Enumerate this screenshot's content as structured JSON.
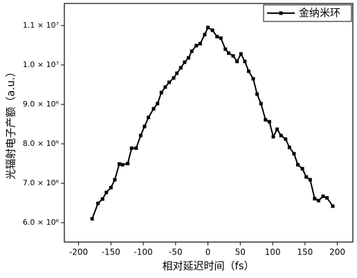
{
  "chart_data": {
    "type": "line",
    "xlabel": "相对延迟时间（fs）",
    "ylabel": "光辐射电子产额（a.u.）",
    "xlim": [
      -222,
      224
    ],
    "ylim": [
      5510000,
      11560000
    ],
    "xticks": [
      -200,
      -150,
      -100,
      -50,
      0,
      50,
      100,
      150,
      200
    ],
    "yticks": [
      {
        "value": 6000000,
        "label": "6.0 × 10⁶"
      },
      {
        "value": 7000000,
        "label": "7.0 × 10⁶"
      },
      {
        "value": 8000000,
        "label": "8.0 × 10⁶"
      },
      {
        "value": 9000000,
        "label": "9.0 × 10⁶"
      },
      {
        "value": 10000000,
        "label": "1.0 × 10⁷"
      },
      {
        "value": 11000000,
        "label": "1.1 × 10⁷"
      }
    ],
    "legend": "top-right",
    "series": [
      {
        "name": "金纳米环",
        "color": "#000000",
        "x": [
          -179,
          -170,
          -163,
          -157,
          -150,
          -144,
          -137,
          -132,
          -124,
          -118,
          -111,
          -104,
          -98,
          -92,
          -84,
          -78,
          -72,
          -66,
          -60,
          -53,
          -48,
          -42,
          -36,
          -30,
          -25,
          -18,
          -12,
          -5,
          0,
          7,
          14,
          20,
          27,
          32,
          39,
          45,
          51,
          57,
          63,
          70,
          76,
          82,
          89,
          95,
          101,
          107,
          113,
          120,
          126,
          133,
          139,
          146,
          152,
          158,
          165,
          171,
          178,
          184,
          193
        ],
        "values": [
          6100000,
          6490000,
          6600000,
          6770000,
          6890000,
          7090000,
          7490000,
          7470000,
          7500000,
          7890000,
          7890000,
          8210000,
          8440000,
          8670000,
          8890000,
          9020000,
          9300000,
          9440000,
          9560000,
          9670000,
          9790000,
          9930000,
          10070000,
          10180000,
          10350000,
          10490000,
          10540000,
          10770000,
          10950000,
          10880000,
          10720000,
          10680000,
          10400000,
          10300000,
          10230000,
          10090000,
          10280000,
          10090000,
          9840000,
          9650000,
          9260000,
          9020000,
          8610000,
          8560000,
          8180000,
          8370000,
          8210000,
          8120000,
          7910000,
          7750000,
          7470000,
          7370000,
          7160000,
          7090000,
          6610000,
          6560000,
          6670000,
          6630000,
          6420000
        ]
      }
    ]
  }
}
